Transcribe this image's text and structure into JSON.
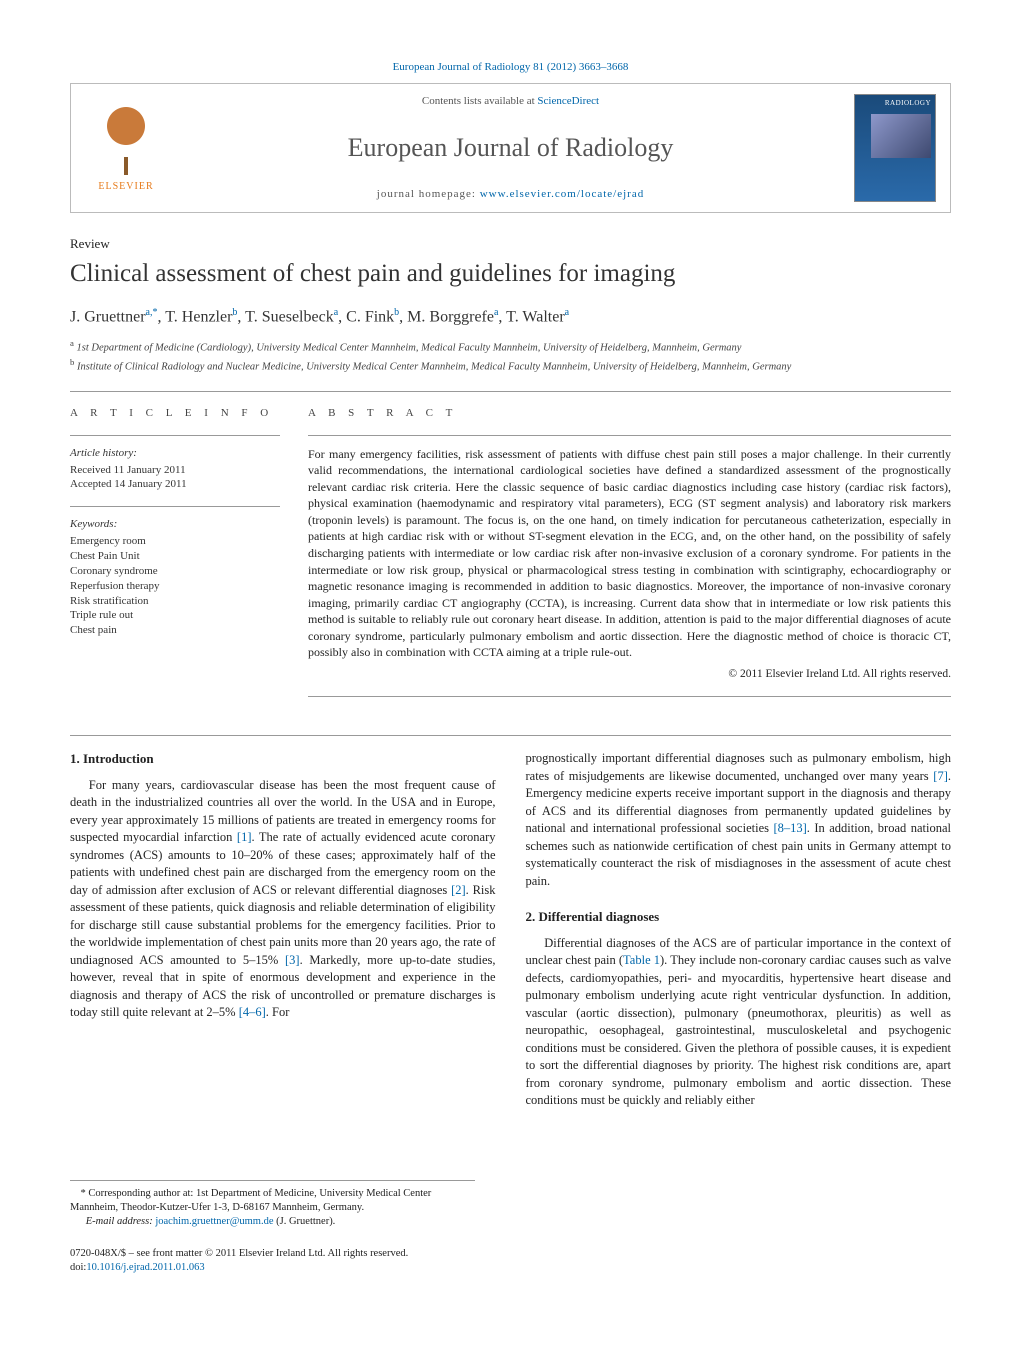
{
  "top_link": "European Journal of Radiology 81 (2012) 3663–3668",
  "header": {
    "contents_prefix": "Contents lists available at ",
    "contents_link": "ScienceDirect",
    "journal_name": "European Journal of Radiology",
    "homepage_prefix": "journal homepage: ",
    "homepage_url": "www.elsevier.com/locate/ejrad",
    "elsevier": "ELSEVIER",
    "cover_label": "RADIOLOGY"
  },
  "article": {
    "type": "Review",
    "title": "Clinical assessment of chest pain and guidelines for imaging",
    "authors_html": "J. Gruettner<sup>a,*</sup>, T. Henzler<sup>b</sup>, T. Sueselbeck<sup>a</sup>, C. Fink<sup>b</sup>, M. Borggrefe<sup>a</sup>, T. Walter<sup>a</sup>",
    "affiliations": [
      {
        "sup": "a",
        "text": "1st Department of Medicine (Cardiology), University Medical Center Mannheim, Medical Faculty Mannheim, University of Heidelberg, Mannheim, Germany"
      },
      {
        "sup": "b",
        "text": "Institute of Clinical Radiology and Nuclear Medicine, University Medical Center Mannheim, Medical Faculty Mannheim, University of Heidelberg, Mannheim, Germany"
      }
    ]
  },
  "meta": {
    "info_heading": "a r t i c l e   i n f o",
    "history_label": "Article history:",
    "history": [
      "Received 11 January 2011",
      "Accepted 14 January 2011"
    ],
    "keywords_label": "Keywords:",
    "keywords": [
      "Emergency room",
      "Chest Pain Unit",
      "Coronary syndrome",
      "Reperfusion therapy",
      "Risk stratification",
      "Triple rule out",
      "Chest pain"
    ]
  },
  "abstract": {
    "heading": "a b s t r a c t",
    "text": "For many emergency facilities, risk assessment of patients with diffuse chest pain still poses a major challenge. In their currently valid recommendations, the international cardiological societies have defined a standardized assessment of the prognostically relevant cardiac risk criteria. Here the classic sequence of basic cardiac diagnostics including case history (cardiac risk factors), physical examination (haemodynamic and respiratory vital parameters), ECG (ST segment analysis) and laboratory risk markers (troponin levels) is paramount. The focus is, on the one hand, on timely indication for percutaneous catheterization, especially in patients at high cardiac risk with or without ST-segment elevation in the ECG, and, on the other hand, on the possibility of safely discharging patients with intermediate or low cardiac risk after non-invasive exclusion of a coronary syndrome. For patients in the intermediate or low risk group, physical or pharmacological stress testing in combination with scintigraphy, echocardiography or magnetic resonance imaging is recommended in addition to basic diagnostics. Moreover, the importance of non-invasive coronary imaging, primarily cardiac CT angiography (CCTA), is increasing. Current data show that in intermediate or low risk patients this method is suitable to reliably rule out coronary heart disease. In addition, attention is paid to the major differential diagnoses of acute coronary syndrome, particularly pulmonary embolism and aortic dissection. Here the diagnostic method of choice is thoracic CT, possibly also in combination with CCTA aiming at a triple rule-out.",
    "copyright": "© 2011 Elsevier Ireland Ltd. All rights reserved."
  },
  "sections": {
    "intro_heading": "1.  Introduction",
    "intro_p1": "For many years, cardiovascular disease has been the most frequent cause of death in the industrialized countries all over the world. In the USA and in Europe, every year approximately 15 millions of patients are treated in emergency rooms for suspected myocardial infarction [1]. The rate of actually evidenced acute coronary syndromes (ACS) amounts to 10–20% of these cases; approximately half of the patients with undefined chest pain are discharged from the emergency room on the day of admission after exclusion of ACS or relevant differential diagnoses [2]. Risk assessment of these patients, quick diagnosis and reliable determination of eligibility for discharge still cause substantial problems for the emergency facilities. Prior to the worldwide implementation of chest pain units more than 20 years ago, the rate of undiagnosed ACS amounted to 5–15% [3]. Markedly, more up-to-date studies, however, reveal that in spite of enormous development and experience in the diagnosis and therapy of ACS the risk of uncontrolled or premature discharges is today still quite relevant at 2–5% [4–6]. For",
    "intro_p2": "prognostically important differential diagnoses such as pulmonary embolism, high rates of misjudgements are likewise documented, unchanged over many years [7]. Emergency medicine experts receive important support in the diagnosis and therapy of ACS and its differential diagnoses from permanently updated guidelines by national and international professional societies [8–13]. In addition, broad national schemes such as nationwide certification of chest pain units in Germany attempt to systematically counteract the risk of misdiagnoses in the assessment of acute chest pain.",
    "diff_heading": "2.  Differential diagnoses",
    "diff_p1": "Differential diagnoses of the ACS are of particular importance in the context of unclear chest pain (Table 1). They include non-coronary cardiac causes such as valve defects, cardiomyopathies, peri- and myocarditis, hypertensive heart disease and pulmonary embolism underlying acute right ventricular dysfunction. In addition, vascular (aortic dissection), pulmonary (pneumothorax, pleuritis) as well as neuropathic, oesophageal, gastrointestinal, musculoskeletal and psychogenic conditions must be considered. Given the plethora of possible causes, it is expedient to sort the differential diagnoses by priority. The highest risk conditions are, apart from coronary syndrome, pulmonary embolism and aortic dissection. These conditions must be quickly and reliably either"
  },
  "footnotes": {
    "corresponding": "* Corresponding author at: 1st Department of Medicine, University Medical Center Mannheim, Theodor-Kutzer-Ufer 1-3, D-68167 Mannheim, Germany.",
    "email_label": "E-mail address: ",
    "email": "joachim.gruettner@umm.de",
    "email_suffix": " (J. Gruettner)."
  },
  "doi": {
    "line1": "0720-048X/$ – see front matter © 2011 Elsevier Ireland Ltd. All rights reserved.",
    "line2_prefix": "doi:",
    "line2_link": "10.1016/j.ejrad.2011.01.063"
  },
  "colors": {
    "link": "#0066aa",
    "text": "#222222",
    "rule": "#999999",
    "elsevier_orange": "#e67a1a",
    "cover_bg": "#1a4a7a"
  },
  "typography": {
    "body_pt": 12.5,
    "title_pt": 25,
    "journal_pt": 26,
    "authors_pt": 16,
    "meta_pt": 11,
    "footnote_pt": 10.5
  }
}
